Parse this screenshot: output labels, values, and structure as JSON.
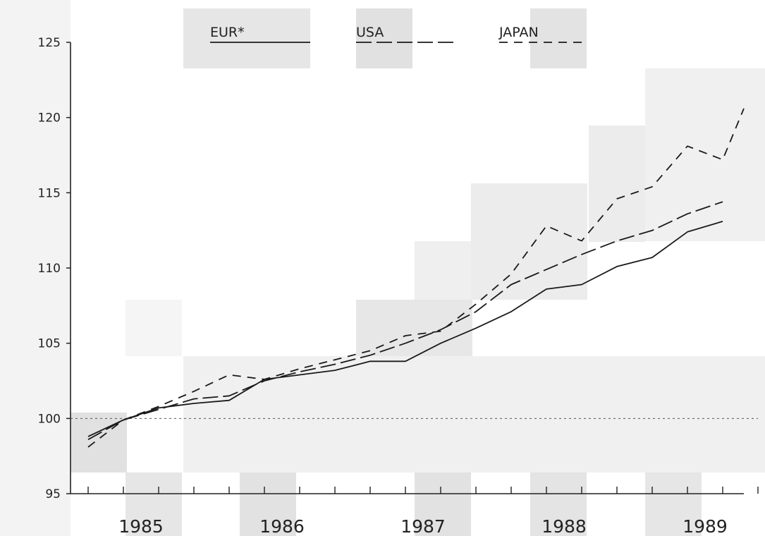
{
  "chart_data": {
    "type": "line",
    "title": "",
    "xlabel": "",
    "ylabel": "",
    "ylim": [
      95,
      125
    ],
    "xlim": [
      1984.625,
      1989.5
    ],
    "y_ticks": [
      "95",
      "100",
      "105",
      "110",
      "115",
      "120",
      "125"
    ],
    "x_year_labels": [
      "1985",
      "1986",
      "1987",
      "1988",
      "1989"
    ],
    "reference_line": 100,
    "grid": false,
    "legend_position": "top",
    "series": [
      {
        "name": "EUR*",
        "style": "solid",
        "x": [
          1984.75,
          1985.0,
          1985.25,
          1985.5,
          1985.75,
          1986.0,
          1986.25,
          1986.5,
          1986.75,
          1987.0,
          1987.25,
          1987.5,
          1987.75,
          1988.0,
          1988.25,
          1988.5,
          1988.75,
          1989.0,
          1989.25
        ],
        "values": [
          98.8,
          99.9,
          100.7,
          101.0,
          101.2,
          102.6,
          102.9,
          103.2,
          103.8,
          103.8,
          105.0,
          106.0,
          107.1,
          108.6,
          108.9,
          110.1,
          110.7,
          112.4,
          113.1
        ]
      },
      {
        "name": "USA",
        "style": "dash",
        "x": [
          1984.75,
          1985.0,
          1985.25,
          1985.5,
          1985.75,
          1986.0,
          1986.25,
          1986.5,
          1986.75,
          1987.0,
          1987.25,
          1987.5,
          1987.75,
          1988.0,
          1988.25,
          1988.5,
          1988.75,
          1989.0,
          1989.25
        ],
        "values": [
          98.6,
          99.9,
          100.6,
          101.3,
          101.5,
          102.5,
          103.1,
          103.6,
          104.2,
          105.0,
          105.9,
          107.1,
          108.9,
          109.9,
          110.9,
          111.8,
          112.5,
          113.6,
          114.4
        ]
      },
      {
        "name": "JAPAN",
        "style": "short-dash",
        "x": [
          1984.75,
          1985.0,
          1985.25,
          1985.5,
          1985.75,
          1986.0,
          1986.25,
          1986.5,
          1986.75,
          1987.0,
          1987.25,
          1987.5,
          1987.75,
          1988.0,
          1988.25,
          1988.5,
          1988.75,
          1989.0,
          1989.25
        ],
        "values": [
          98.1,
          99.9,
          100.8,
          101.8,
          102.9,
          102.6,
          103.3,
          103.9,
          104.5,
          105.5,
          105.8,
          107.6,
          109.6,
          112.8,
          111.8,
          114.6,
          115.4,
          118.1,
          117.2
        ]
      }
    ],
    "japan_last_value_x": 1989.4,
    "japan_last_value": 120.6,
    "colors": {
      "line": "#1a1a1a",
      "axis": "#222222",
      "reference": "#555555"
    }
  }
}
